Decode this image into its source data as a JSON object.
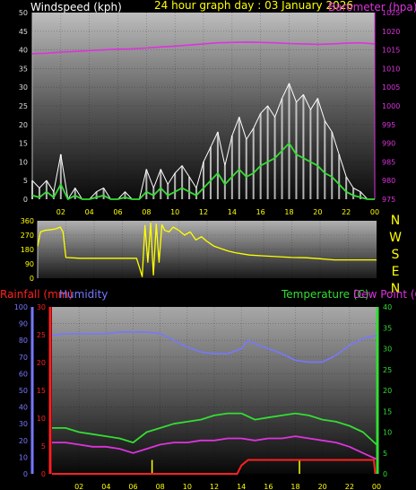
{
  "labels": {
    "windspeed": "Windspeed (kph)",
    "graph_title": "24 hour graph day : 03 January 2026",
    "barometer": "Barometer (hpa)",
    "rainfall": "Rainfall (mm)",
    "humidity": "Humidity",
    "temperature": "Temperature (C)",
    "dewpoint": "Dew Point (C)"
  },
  "colors": {
    "windspeed_label": "#ffffff",
    "title": "#ffff00",
    "barometer": "#dd33dd",
    "gust": "#ffffff",
    "wind_avg": "#33dd33",
    "winddir": "#ffff00",
    "rain": "#ff2020",
    "rain_rate": "#ffff00",
    "humidity": "#7777ff",
    "temperature": "#33dd33",
    "dewpoint": "#dd33dd",
    "axis": "#bbbbbb"
  },
  "x_ticks": [
    "02",
    "04",
    "06",
    "08",
    "10",
    "12",
    "14",
    "16",
    "18",
    "20",
    "22",
    "00"
  ],
  "chart_data": [
    {
      "type": "line",
      "x_unit": "hours",
      "x_range": [
        0,
        24
      ],
      "wind_axis": {
        "ticks": [
          0,
          5,
          10,
          15,
          20,
          25,
          30,
          35,
          40,
          45,
          50
        ],
        "range": [
          0,
          50
        ]
      },
      "baro_axis": {
        "ticks": [
          975,
          980,
          985,
          990,
          995,
          1000,
          1005,
          1010,
          1015,
          1020,
          1025
        ],
        "range": [
          975,
          1025
        ]
      },
      "series": [
        {
          "key": "barometer",
          "axis": "baro",
          "x": [
            0,
            1,
            2,
            3,
            4,
            5,
            6,
            7,
            8,
            9,
            10,
            11,
            12,
            13,
            14,
            15,
            16,
            17,
            18,
            19,
            20,
            21,
            22,
            23,
            24
          ],
          "values": [
            1014.0,
            1014.1,
            1014.4,
            1014.6,
            1014.8,
            1015.0,
            1015.2,
            1015.3,
            1015.5,
            1015.8,
            1016.0,
            1016.3,
            1016.6,
            1016.9,
            1017.0,
            1017.1,
            1017.0,
            1016.9,
            1016.7,
            1016.6,
            1016.5,
            1016.6,
            1016.8,
            1016.9,
            1016.6
          ]
        },
        {
          "key": "gust",
          "axis": "wind",
          "x": [
            0,
            0.5,
            1,
            1.5,
            2,
            2.5,
            3,
            3.5,
            4,
            4.5,
            5,
            5.5,
            6,
            6.5,
            7,
            7.5,
            8,
            8.5,
            9,
            9.5,
            10,
            10.5,
            11,
            11.5,
            12,
            12.5,
            13,
            13.5,
            14,
            14.5,
            15,
            15.5,
            16,
            16.5,
            17,
            17.5,
            18,
            18.5,
            19,
            19.5,
            20,
            20.5,
            21,
            21.5,
            22,
            22.5,
            23,
            23.5,
            24
          ],
          "values": [
            5,
            3,
            5,
            2,
            12,
            0,
            3,
            0,
            0,
            2,
            3,
            0,
            0,
            2,
            0,
            0,
            8,
            3,
            8,
            4,
            7,
            9,
            6,
            3,
            10,
            14,
            18,
            9,
            17,
            22,
            16,
            19,
            23,
            25,
            22,
            27,
            31,
            26,
            28,
            24,
            27,
            21,
            18,
            12,
            6,
            3,
            2,
            0,
            0
          ]
        },
        {
          "key": "wind_avg",
          "axis": "wind",
          "x": [
            0,
            0.5,
            1,
            1.5,
            2,
            2.5,
            3,
            3.5,
            4,
            4.5,
            5,
            5.5,
            6,
            6.5,
            7,
            7.5,
            8,
            8.5,
            9,
            9.5,
            10,
            10.5,
            11,
            11.5,
            12,
            12.5,
            13,
            13.5,
            14,
            14.5,
            15,
            15.5,
            16,
            16.5,
            17,
            17.5,
            18,
            18.5,
            19,
            19.5,
            20,
            20.5,
            21,
            21.5,
            22,
            22.5,
            23,
            23.5,
            24
          ],
          "values": [
            1,
            0.5,
            2,
            0.5,
            4,
            0,
            1,
            0,
            0,
            0.5,
            1,
            0,
            0,
            0.5,
            0,
            0,
            2,
            1,
            3,
            1,
            2,
            3,
            2,
            1,
            3,
            5,
            7,
            4,
            6,
            8,
            6,
            7,
            9,
            10,
            11,
            13,
            15,
            12,
            11,
            10,
            9,
            7,
            6,
            4,
            2,
            1,
            0.5,
            0,
            0
          ]
        }
      ]
    },
    {
      "type": "line",
      "x_unit": "hours",
      "x_range": [
        0,
        24
      ],
      "y_axis": {
        "ticks": [
          0,
          90,
          180,
          270,
          360
        ],
        "range": [
          0,
          360
        ]
      },
      "direction_labels": [
        "N",
        "W",
        "S",
        "E",
        "N"
      ],
      "series": [
        {
          "key": "winddir",
          "x": [
            0,
            0.2,
            0.5,
            1,
            1.3,
            1.6,
            1.8,
            2,
            3,
            4,
            5,
            6,
            7,
            7.2,
            7.4,
            7.6,
            7.8,
            8,
            8.2,
            8.4,
            8.6,
            8.8,
            9,
            9.3,
            9.6,
            10,
            10.4,
            10.8,
            11.2,
            11.6,
            12,
            12.5,
            13,
            13.5,
            14,
            15,
            16,
            17,
            18,
            19,
            20,
            20.5,
            21,
            22,
            23,
            24
          ],
          "values": [
            200,
            290,
            300,
            305,
            310,
            320,
            290,
            130,
            125,
            125,
            125,
            125,
            125,
            70,
            10,
            330,
            100,
            345,
            20,
            340,
            100,
            335,
            300,
            290,
            320,
            300,
            270,
            290,
            240,
            260,
            230,
            200,
            185,
            170,
            160,
            145,
            140,
            135,
            130,
            128,
            122,
            118,
            115,
            115,
            115,
            115
          ]
        }
      ]
    },
    {
      "type": "line",
      "x_unit": "hours",
      "x_range": [
        0,
        24
      ],
      "humidity_axis": {
        "ticks": [
          0,
          10,
          20,
          30,
          40,
          50,
          60,
          70,
          80,
          90,
          100
        ],
        "range": [
          0,
          100
        ]
      },
      "rain_axis": {
        "ticks": [
          0,
          5,
          10,
          15,
          20,
          25,
          30
        ],
        "range": [
          0,
          30
        ]
      },
      "temp_axis": {
        "ticks": [
          0,
          5,
          10,
          15,
          20,
          25,
          30,
          35,
          40
        ],
        "range": [
          0,
          40
        ]
      },
      "series": [
        {
          "key": "humidity",
          "axis": "humidity",
          "x": [
            0,
            1,
            2,
            3,
            4,
            5,
            6,
            7,
            8,
            9,
            10,
            11,
            12,
            13,
            14,
            14.5,
            15,
            16,
            17,
            18,
            19,
            20,
            21,
            22,
            23,
            24
          ],
          "values": [
            83,
            84,
            84,
            84,
            84,
            85,
            85,
            85,
            84,
            80,
            76,
            73,
            72,
            72,
            75,
            80,
            78,
            75,
            72,
            68,
            67,
            67,
            71,
            77,
            81,
            83
          ]
        },
        {
          "key": "temperature",
          "axis": "temp",
          "x": [
            0,
            1,
            2,
            3,
            4,
            5,
            6,
            7,
            8,
            9,
            10,
            11,
            12,
            13,
            14,
            15,
            16,
            17,
            18,
            19,
            20,
            21,
            22,
            23,
            24
          ],
          "values": [
            11,
            11,
            10,
            9.5,
            9,
            8.5,
            7.5,
            10,
            11,
            12,
            12.5,
            13,
            14,
            14.5,
            14.5,
            13,
            13.5,
            14,
            14.5,
            14,
            13,
            12.5,
            11.5,
            10,
            7
          ]
        },
        {
          "key": "dewpoint",
          "axis": "temp",
          "x": [
            0,
            1,
            2,
            3,
            4,
            5,
            6,
            7,
            8,
            9,
            10,
            11,
            12,
            13,
            14,
            15,
            16,
            17,
            18,
            19,
            20,
            21,
            22,
            23,
            24
          ],
          "values": [
            7.5,
            7.5,
            7,
            6.5,
            6.5,
            6,
            5,
            6,
            7,
            7.5,
            7.5,
            8,
            8,
            8.5,
            8.5,
            8,
            8.5,
            8.5,
            9,
            8.5,
            8,
            7.5,
            6.5,
            5,
            3.5
          ]
        },
        {
          "key": "rain",
          "axis": "rain",
          "x": [
            0,
            1,
            2,
            3,
            4,
            5,
            6,
            7,
            8,
            9,
            10,
            11,
            12,
            13,
            13.7,
            14,
            14.5,
            15,
            16,
            17,
            18,
            19,
            20,
            21,
            22,
            23,
            23.8,
            23.9
          ],
          "values": [
            0,
            0,
            0,
            0,
            0,
            0,
            0,
            0,
            0,
            0,
            0,
            0,
            0,
            0,
            0,
            1.5,
            2.5,
            2.5,
            2.5,
            2.5,
            2.5,
            2.5,
            2.5,
            2.5,
            2.5,
            2.5,
            2.5,
            0
          ]
        },
        {
          "key": "rain_rate",
          "axis": "rain",
          "type": "bar",
          "x": [
            7.4,
            18.3
          ],
          "values": [
            2.5,
            2.5
          ]
        }
      ]
    }
  ]
}
